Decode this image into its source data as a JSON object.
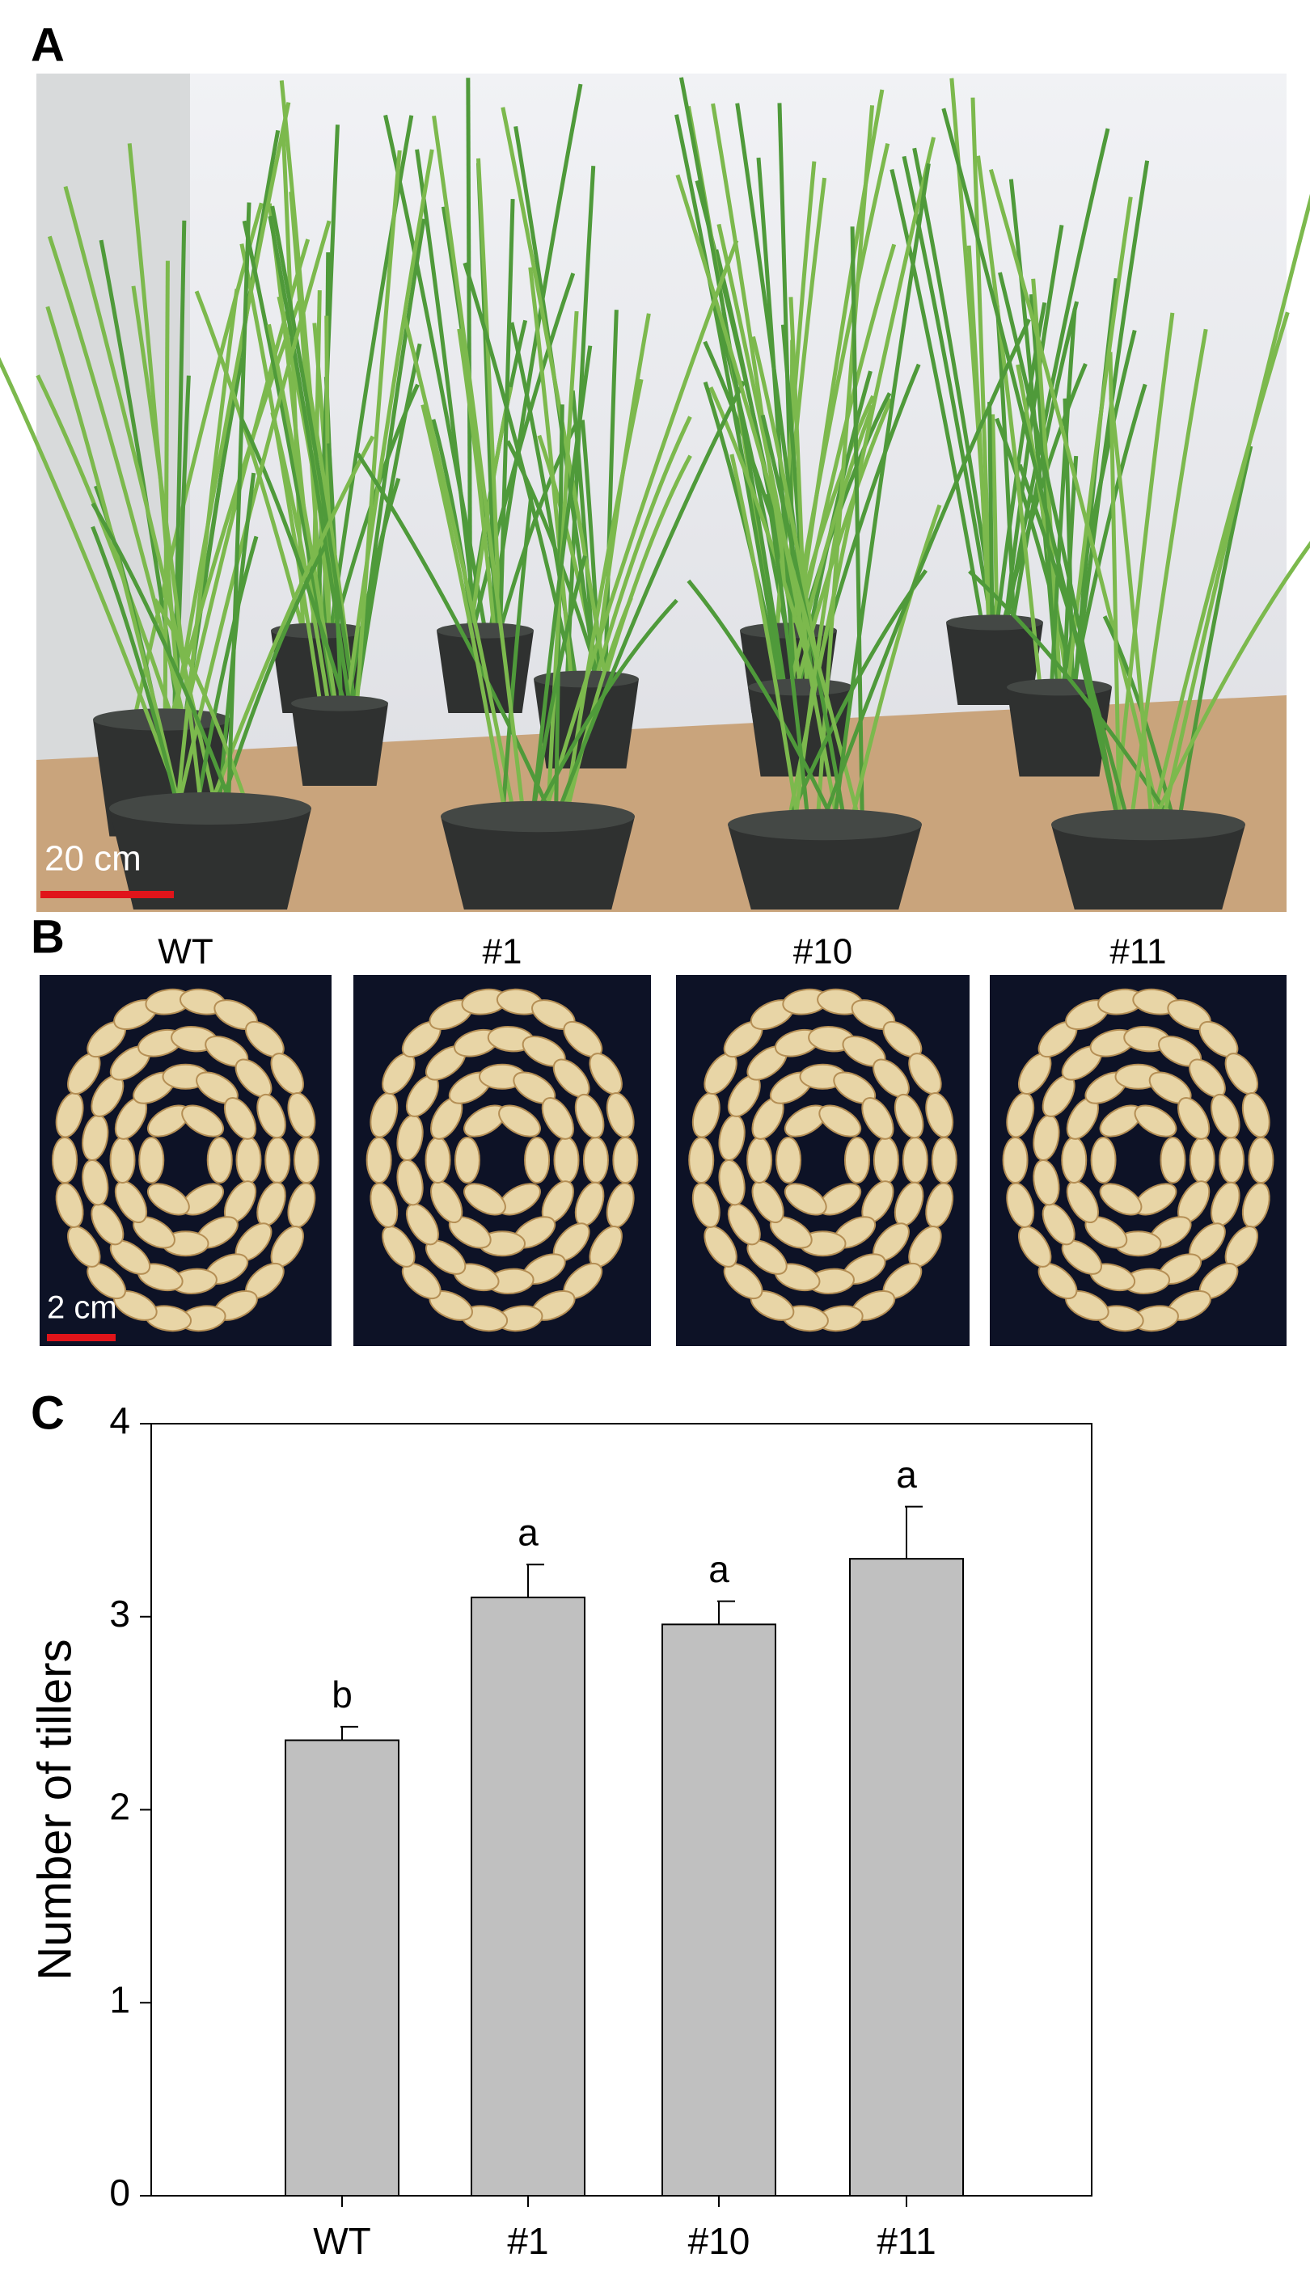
{
  "panels": {
    "a": "A",
    "b": "B",
    "c": "C"
  },
  "photo_a": {
    "scale_bar": "20 cm"
  },
  "photo_b": {
    "captions": [
      "WT",
      "#1",
      "#10",
      "#11"
    ],
    "scale_bar": "2 cm"
  },
  "chart_data": {
    "type": "bar",
    "ylabel": "Number of tillers",
    "categories": [
      "WT",
      "#1",
      "#10",
      "#11"
    ],
    "values": [
      2.36,
      3.1,
      2.96,
      3.3
    ],
    "errors": [
      0.07,
      0.17,
      0.12,
      0.27
    ],
    "annotations": [
      "b",
      "a",
      "a",
      "a"
    ],
    "color": "#c0c0c0",
    "ylim": [
      0,
      4
    ],
    "yticks": [
      0,
      1,
      2,
      3,
      4
    ]
  }
}
